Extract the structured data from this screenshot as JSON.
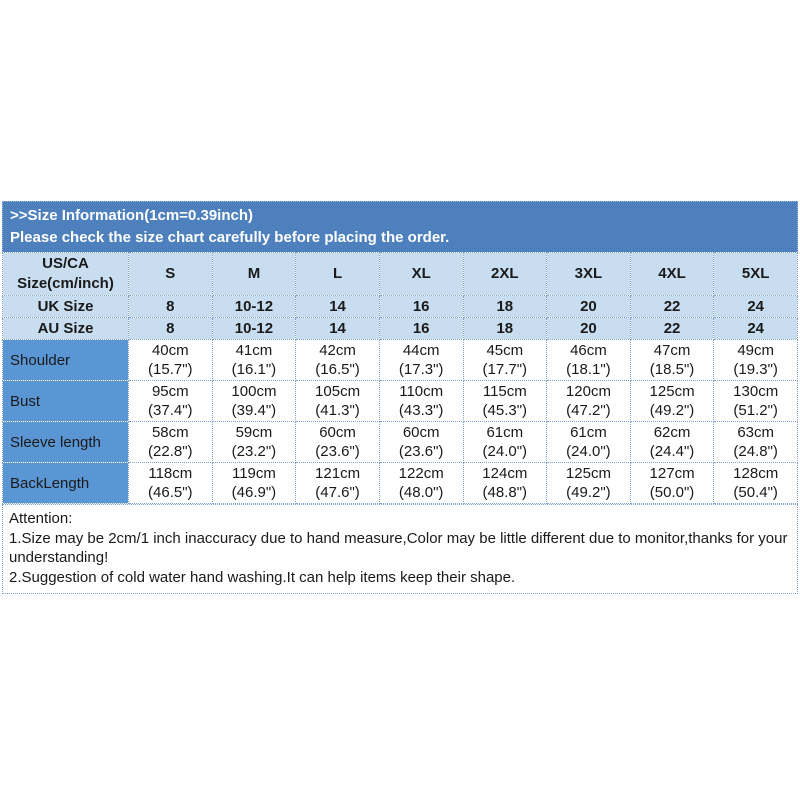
{
  "banner": {
    "line1": ">>Size Information(1cm=0.39inch)",
    "line2": "Please check the size chart carefully before placing the order."
  },
  "colors": {
    "banner_bg": "#4e80bd",
    "header_bg": "#c9ddf1",
    "label_bg": "#5a96d4",
    "border": "#7fa3cc",
    "banner_text": "#ffffff"
  },
  "size_chart": {
    "corner_line1": "US/CA",
    "corner_line2": "Size(cm/inch)",
    "sizes": [
      "S",
      "M",
      "L",
      "XL",
      "2XL",
      "3XL",
      "4XL",
      "5XL"
    ],
    "uk_label": "UK Size",
    "uk": [
      "8",
      "10-12",
      "14",
      "16",
      "18",
      "20",
      "22",
      "24"
    ],
    "au_label": "AU Size",
    "au": [
      "8",
      "10-12",
      "14",
      "16",
      "18",
      "20",
      "22",
      "24"
    ],
    "measurements": [
      {
        "label": "Shoulder",
        "cm": [
          "40cm",
          "41cm",
          "42cm",
          "44cm",
          "45cm",
          "46cm",
          "47cm",
          "49cm"
        ],
        "inch": [
          "(15.7\")",
          "(16.1\")",
          "(16.5\")",
          "(17.3\")",
          "(17.7\")",
          "(18.1\")",
          "(18.5\")",
          "(19.3\")"
        ]
      },
      {
        "label": "Bust",
        "cm": [
          "95cm",
          "100cm",
          "105cm",
          "110cm",
          "115cm",
          "120cm",
          "125cm",
          "130cm"
        ],
        "inch": [
          "(37.4\")",
          "(39.4\")",
          "(41.3\")",
          "(43.3\")",
          "(45.3\")",
          "(47.2\")",
          "(49.2\")",
          "(51.2\")"
        ]
      },
      {
        "label": "Sleeve length",
        "cm": [
          "58cm",
          "59cm",
          "60cm",
          "60cm",
          "61cm",
          "61cm",
          "62cm",
          "63cm"
        ],
        "inch": [
          "(22.8\")",
          "(23.2\")",
          "(23.6\")",
          "(23.6\")",
          "(24.0\")",
          "(24.0\")",
          "(24.4\")",
          "(24.8\")"
        ]
      },
      {
        "label": "BackLength",
        "cm": [
          "118cm",
          "119cm",
          "121cm",
          "122cm",
          "124cm",
          "125cm",
          "127cm",
          "128cm"
        ],
        "inch": [
          "(46.5\")",
          "(46.9\")",
          "(47.6\")",
          "(48.0\")",
          "(48.8\")",
          "(49.2\")",
          "(50.0\")",
          "(50.4\")"
        ]
      }
    ]
  },
  "attention": {
    "title": "Attention:",
    "line1": "1.Size may be 2cm/1 inch inaccuracy due to hand measure,Color may be little different due to monitor,thanks for your understanding!",
    "line2": "2.Suggestion of cold water hand washing.It can help items keep their shape."
  }
}
